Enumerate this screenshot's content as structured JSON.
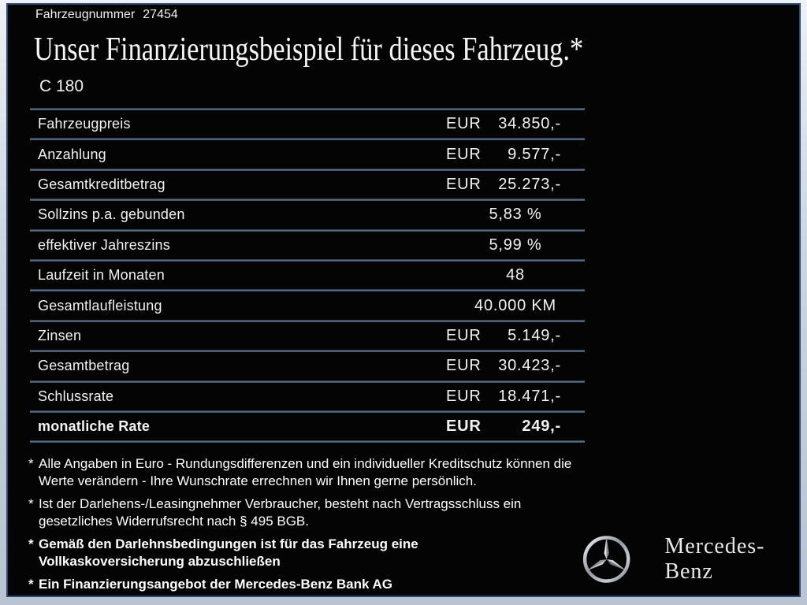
{
  "header": {
    "vehicle_number_label": "Fahrzeugnummer",
    "vehicle_number": "27454",
    "title": "Unser Finanzierungsbeispiel für dieses Fahrzeug.*",
    "model": "C 180"
  },
  "table": {
    "rows": [
      {
        "label": "Fahrzeugpreis",
        "currency": "EUR",
        "value": "34.850,-",
        "emphasis": false
      },
      {
        "label": "Anzahlung",
        "currency": "EUR",
        "value": "9.577,-",
        "emphasis": false
      },
      {
        "label": "Gesamtkreditbetrag",
        "currency": "EUR",
        "value": "25.273,-",
        "emphasis": false
      },
      {
        "label": "Sollzins p.a. gebunden",
        "currency": "",
        "value": "5,83 %",
        "emphasis": false
      },
      {
        "label": "effektiver Jahreszins",
        "currency": "",
        "value": "5,99 %",
        "emphasis": false
      },
      {
        "label": "Laufzeit in Monaten",
        "currency": "",
        "value": "48",
        "emphasis": false
      },
      {
        "label": "Gesamtlaufleistung",
        "currency": "",
        "value": "40.000 KM",
        "emphasis": false
      },
      {
        "label": "Zinsen",
        "currency": "EUR",
        "value": "5.149,-",
        "emphasis": false
      },
      {
        "label": "Gesamtbetrag",
        "currency": "EUR",
        "value": "30.423,-",
        "emphasis": false
      },
      {
        "label": "Schlussrate",
        "currency": "EUR",
        "value": "18.471,-",
        "emphasis": false
      },
      {
        "label": "monatliche Rate",
        "currency": "EUR",
        "value": "249,-",
        "emphasis": true
      }
    ]
  },
  "footnotes": [
    {
      "marker": "*",
      "bold": false,
      "text": "Alle Angaben in Euro - Rundungsdifferenzen und ein individueller Kreditschutz können die\nWerte verändern - Ihre Wunschrate errechnen wir Ihnen gerne persönlich."
    },
    {
      "marker": "*",
      "bold": false,
      "text": "Ist der Darlehens-/Leasingnehmer Verbraucher, besteht nach Vertragsschluss ein\ngesetzliches Widerrufsrecht nach § 495 BGB."
    },
    {
      "marker": "*",
      "bold": true,
      "text": "Gemäß den Darlehnsbedingungen ist für das Fahrzeug eine\nVollkaskoversicherung abzuschließen"
    },
    {
      "marker": "*",
      "bold": true,
      "text": "Ein Finanzierungsangebot der Mercedes-Benz Bank AG"
    }
  ],
  "branding": {
    "logo": "mercedes-star-icon",
    "wordmark": "Mercedes-Benz"
  },
  "colors": {
    "background": "#040404",
    "text": "#f2f2f2",
    "outer_frame": "#ccd5e0",
    "inner_border": "#2d4d70",
    "table_divider": "#5d7089"
  }
}
